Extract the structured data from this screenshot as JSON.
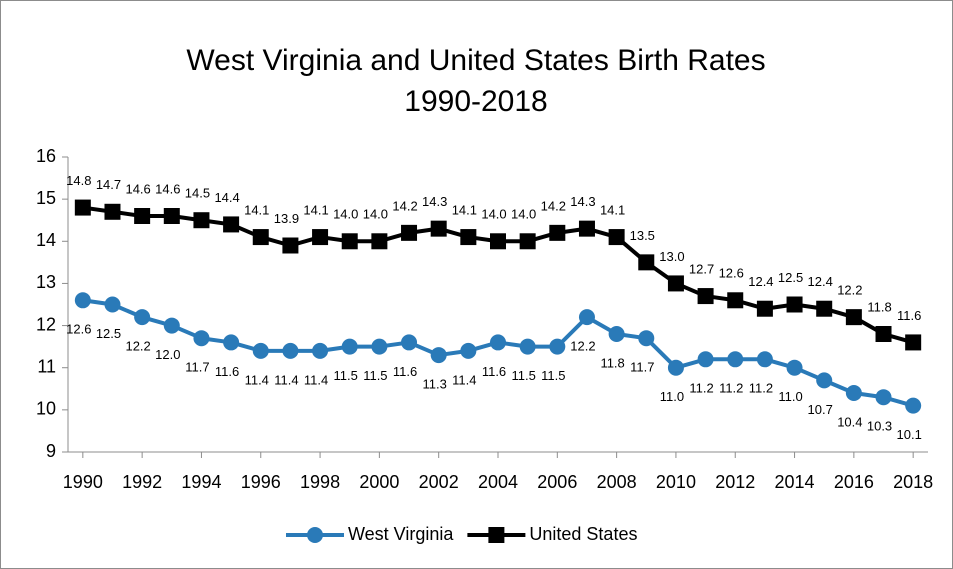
{
  "chart_data": {
    "type": "line",
    "title": "West Virginia and United States Birth Rates",
    "subtitle": "1990-2018",
    "x": [
      1990,
      1991,
      1992,
      1993,
      1994,
      1995,
      1996,
      1997,
      1998,
      1999,
      2000,
      2001,
      2002,
      2003,
      2004,
      2005,
      2006,
      2007,
      2008,
      2009,
      2010,
      2011,
      2012,
      2013,
      2014,
      2015,
      2016,
      2017,
      2018
    ],
    "xlim": [
      1989.5,
      2018.5
    ],
    "xticks": [
      1990,
      1992,
      1994,
      1996,
      1998,
      2000,
      2002,
      2004,
      2006,
      2008,
      2010,
      2012,
      2014,
      2016,
      2018
    ],
    "ylim": [
      9,
      16
    ],
    "yticks": [
      9,
      10,
      11,
      12,
      13,
      14,
      15,
      16
    ],
    "grid": false,
    "legend": "bottom",
    "series": [
      {
        "name": "West Virginia",
        "color": "#2a7ab8",
        "marker": "circle",
        "label_position": "below",
        "values": [
          12.6,
          12.5,
          12.2,
          12.0,
          11.7,
          11.6,
          11.4,
          11.4,
          11.4,
          11.5,
          11.5,
          11.6,
          11.3,
          11.4,
          11.6,
          11.5,
          11.5,
          12.2,
          11.8,
          11.7,
          11.0,
          11.2,
          11.2,
          11.2,
          11.0,
          10.7,
          10.4,
          10.3,
          10.1
        ],
        "value_labels": [
          "12.6",
          "12.5",
          "12.2",
          "12.0",
          "11.7",
          "11.6",
          "11.4",
          "11.4",
          "11.4",
          "11.5",
          "11.5",
          "11.6",
          "11.3",
          "11.4",
          "11.6",
          "11.5",
          "11.5",
          "12.2",
          "11.8",
          "11.7",
          "11.0",
          "11.2",
          "11.2",
          "11.2",
          "11.0",
          "10.7",
          "10.4",
          "10.3",
          "10.1"
        ]
      },
      {
        "name": "United States",
        "color": "#000000",
        "marker": "square",
        "label_position": "above",
        "values": [
          14.8,
          14.7,
          14.6,
          14.6,
          14.5,
          14.4,
          14.1,
          13.9,
          14.1,
          14.0,
          14.0,
          14.2,
          14.3,
          14.1,
          14.0,
          14.0,
          14.2,
          14.3,
          14.1,
          13.5,
          13.0,
          12.7,
          12.6,
          12.4,
          12.5,
          12.4,
          12.2,
          11.8,
          11.6
        ],
        "value_labels": [
          "14.8",
          "14.7",
          "14.6",
          "14.6",
          "14.5",
          "14.4",
          "14.1",
          "13.9",
          "14.1",
          "14.0",
          "14.0",
          "14.2",
          "14.3",
          "14.1",
          "14.0",
          "14.0",
          "14.2",
          "14.3",
          "14.1",
          "13.5",
          "13.0",
          "12.7",
          "12.6",
          "12.4",
          "12.5",
          "12.4",
          "12.2",
          "11.8",
          "11.6"
        ]
      }
    ]
  }
}
